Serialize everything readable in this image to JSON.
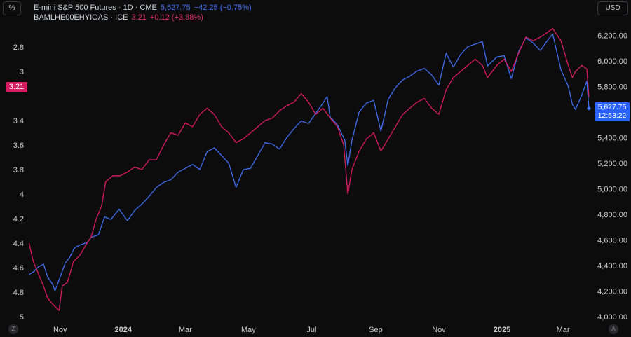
{
  "toolbar": {
    "unit_label": "%",
    "currency_label": "USD",
    "left_corner": "Z",
    "right_corner": "A"
  },
  "legend": {
    "s1": {
      "name": "E-mini S&P 500 Futures · 1D · CME",
      "value": "5,627.75",
      "change": "−42.25 (−0.75%)"
    },
    "s2": {
      "name": "BAMLHE00EHYIOAS · ICE",
      "value": "3.21",
      "change": "+0.12 (+3.88%)"
    }
  },
  "badges": {
    "left_value": "3.21",
    "right_value": "5,627.75",
    "right_countdown": "12:53:22"
  },
  "colors": {
    "sp500": "#3f6ef0",
    "spread": "#d81b60",
    "background": "#0c0c0d",
    "axis_text": "#cfcfcf"
  },
  "chart_data": {
    "type": "line",
    "x_range": [
      "2023-10-01",
      "2025-03-26"
    ],
    "left_axis": {
      "ticks": [
        "2.8",
        "3",
        "3.4",
        "3.6",
        "3.8",
        "4",
        "4.2",
        "4.4",
        "4.6",
        "4.8",
        "5"
      ],
      "range": [
        2.6,
        5.0
      ],
      "inverted": true
    },
    "right_axis": {
      "ticks": [
        "6,200.00",
        "6,000.00",
        "5,800.00",
        "5,400.00",
        "5,200.00",
        "5,000.00",
        "4,800.00",
        "4,600.00",
        "4,400.00",
        "4,200.00",
        "4,000.00"
      ],
      "range": [
        4000,
        6300
      ]
    },
    "x_ticks": [
      {
        "label": "Nov",
        "date": "2023-11-01",
        "bold": false
      },
      {
        "label": "2024",
        "date": "2024-01-01",
        "bold": true
      },
      {
        "label": "Mar",
        "date": "2024-03-01",
        "bold": false
      },
      {
        "label": "May",
        "date": "2024-05-01",
        "bold": false
      },
      {
        "label": "Jul",
        "date": "2024-07-01",
        "bold": false
      },
      {
        "label": "Sep",
        "date": "2024-09-01",
        "bold": false
      },
      {
        "label": "Nov",
        "date": "2024-11-01",
        "bold": false
      },
      {
        "label": "2025",
        "date": "2025-01-01",
        "bold": true
      },
      {
        "label": "Mar",
        "date": "2025-03-01",
        "bold": false
      }
    ],
    "series": [
      {
        "axis": "right",
        "points": [
          [
            "2023-10-02",
            4330
          ],
          [
            "2023-10-06",
            4350
          ],
          [
            "2023-10-11",
            4390
          ],
          [
            "2023-10-16",
            4410
          ],
          [
            "2023-10-20",
            4310
          ],
          [
            "2023-10-25",
            4250
          ],
          [
            "2023-10-27",
            4200
          ],
          [
            "2023-11-01",
            4310
          ],
          [
            "2023-11-06",
            4420
          ],
          [
            "2023-11-10",
            4460
          ],
          [
            "2023-11-15",
            4540
          ],
          [
            "2023-11-20",
            4560
          ],
          [
            "2023-11-27",
            4580
          ],
          [
            "2023-12-01",
            4620
          ],
          [
            "2023-12-08",
            4640
          ],
          [
            "2023-12-14",
            4780
          ],
          [
            "2023-12-20",
            4760
          ],
          [
            "2023-12-28",
            4840
          ],
          [
            "2024-01-05",
            4750
          ],
          [
            "2024-01-12",
            4830
          ],
          [
            "2024-01-19",
            4880
          ],
          [
            "2024-01-26",
            4940
          ],
          [
            "2024-02-02",
            5010
          ],
          [
            "2024-02-09",
            5050
          ],
          [
            "2024-02-16",
            5070
          ],
          [
            "2024-02-23",
            5130
          ],
          [
            "2024-03-01",
            5160
          ],
          [
            "2024-03-08",
            5190
          ],
          [
            "2024-03-15",
            5150
          ],
          [
            "2024-03-22",
            5290
          ],
          [
            "2024-03-29",
            5320
          ],
          [
            "2024-04-05",
            5260
          ],
          [
            "2024-04-12",
            5200
          ],
          [
            "2024-04-19",
            5010
          ],
          [
            "2024-04-26",
            5150
          ],
          [
            "2024-05-03",
            5160
          ],
          [
            "2024-05-10",
            5260
          ],
          [
            "2024-05-17",
            5360
          ],
          [
            "2024-05-24",
            5350
          ],
          [
            "2024-05-31",
            5310
          ],
          [
            "2024-06-07",
            5400
          ],
          [
            "2024-06-14",
            5470
          ],
          [
            "2024-06-21",
            5530
          ],
          [
            "2024-06-28",
            5510
          ],
          [
            "2024-07-05",
            5590
          ],
          [
            "2024-07-12",
            5670
          ],
          [
            "2024-07-16",
            5720
          ],
          [
            "2024-07-19",
            5560
          ],
          [
            "2024-07-26",
            5500
          ],
          [
            "2024-08-02",
            5380
          ],
          [
            "2024-08-05",
            5180
          ],
          [
            "2024-08-09",
            5380
          ],
          [
            "2024-08-16",
            5600
          ],
          [
            "2024-08-23",
            5670
          ],
          [
            "2024-08-30",
            5690
          ],
          [
            "2024-09-06",
            5450
          ],
          [
            "2024-09-13",
            5700
          ],
          [
            "2024-09-20",
            5790
          ],
          [
            "2024-09-27",
            5850
          ],
          [
            "2024-10-04",
            5880
          ],
          [
            "2024-10-11",
            5920
          ],
          [
            "2024-10-18",
            5940
          ],
          [
            "2024-10-25",
            5890
          ],
          [
            "2024-11-01",
            5810
          ],
          [
            "2024-11-08",
            6060
          ],
          [
            "2024-11-15",
            5950
          ],
          [
            "2024-11-22",
            6050
          ],
          [
            "2024-11-29",
            6110
          ],
          [
            "2024-12-06",
            6130
          ],
          [
            "2024-12-13",
            6150
          ],
          [
            "2024-12-18",
            5960
          ],
          [
            "2024-12-27",
            6030
          ],
          [
            "2025-01-03",
            6040
          ],
          [
            "2025-01-10",
            5860
          ],
          [
            "2025-01-17",
            6070
          ],
          [
            "2025-01-24",
            6180
          ],
          [
            "2025-01-31",
            6140
          ],
          [
            "2025-02-07",
            6080
          ],
          [
            "2025-02-14",
            6160
          ],
          [
            "2025-02-19",
            6210
          ],
          [
            "2025-02-27",
            5930
          ],
          [
            "2025-03-06",
            5800
          ],
          [
            "2025-03-10",
            5660
          ],
          [
            "2025-03-13",
            5620
          ],
          [
            "2025-03-19",
            5730
          ],
          [
            "2025-03-24",
            5840
          ],
          [
            "2025-03-26",
            5628
          ]
        ]
      },
      {
        "axis": "left",
        "points": [
          [
            "2023-10-02",
            4.4
          ],
          [
            "2023-10-06",
            4.55
          ],
          [
            "2023-10-11",
            4.65
          ],
          [
            "2023-10-16",
            4.75
          ],
          [
            "2023-10-20",
            4.85
          ],
          [
            "2023-10-25",
            4.9
          ],
          [
            "2023-10-31",
            4.95
          ],
          [
            "2023-11-03",
            4.75
          ],
          [
            "2023-11-08",
            4.72
          ],
          [
            "2023-11-14",
            4.55
          ],
          [
            "2023-11-20",
            4.5
          ],
          [
            "2023-11-27",
            4.4
          ],
          [
            "2023-12-01",
            4.35
          ],
          [
            "2023-12-06",
            4.2
          ],
          [
            "2023-12-11",
            4.1
          ],
          [
            "2023-12-15",
            3.9
          ],
          [
            "2023-12-22",
            3.85
          ],
          [
            "2023-12-29",
            3.85
          ],
          [
            "2024-01-05",
            3.82
          ],
          [
            "2024-01-12",
            3.78
          ],
          [
            "2024-01-19",
            3.8
          ],
          [
            "2024-01-26",
            3.72
          ],
          [
            "2024-02-02",
            3.72
          ],
          [
            "2024-02-09",
            3.6
          ],
          [
            "2024-02-16",
            3.5
          ],
          [
            "2024-02-23",
            3.52
          ],
          [
            "2024-03-01",
            3.42
          ],
          [
            "2024-03-08",
            3.45
          ],
          [
            "2024-03-15",
            3.35
          ],
          [
            "2024-03-22",
            3.3
          ],
          [
            "2024-03-29",
            3.35
          ],
          [
            "2024-04-05",
            3.45
          ],
          [
            "2024-04-12",
            3.5
          ],
          [
            "2024-04-19",
            3.58
          ],
          [
            "2024-04-26",
            3.55
          ],
          [
            "2024-05-03",
            3.5
          ],
          [
            "2024-05-10",
            3.45
          ],
          [
            "2024-05-17",
            3.4
          ],
          [
            "2024-05-24",
            3.38
          ],
          [
            "2024-05-31",
            3.32
          ],
          [
            "2024-06-07",
            3.28
          ],
          [
            "2024-06-14",
            3.25
          ],
          [
            "2024-06-21",
            3.18
          ],
          [
            "2024-06-28",
            3.25
          ],
          [
            "2024-07-05",
            3.35
          ],
          [
            "2024-07-12",
            3.3
          ],
          [
            "2024-07-19",
            3.38
          ],
          [
            "2024-07-26",
            3.45
          ],
          [
            "2024-08-01",
            3.6
          ],
          [
            "2024-08-05",
            4.0
          ],
          [
            "2024-08-09",
            3.8
          ],
          [
            "2024-08-16",
            3.65
          ],
          [
            "2024-08-23",
            3.55
          ],
          [
            "2024-08-30",
            3.5
          ],
          [
            "2024-09-06",
            3.65
          ],
          [
            "2024-09-13",
            3.55
          ],
          [
            "2024-09-20",
            3.45
          ],
          [
            "2024-09-27",
            3.35
          ],
          [
            "2024-10-04",
            3.3
          ],
          [
            "2024-10-11",
            3.25
          ],
          [
            "2024-10-18",
            3.22
          ],
          [
            "2024-10-25",
            3.3
          ],
          [
            "2024-11-01",
            3.35
          ],
          [
            "2024-11-08",
            3.15
          ],
          [
            "2024-11-15",
            3.05
          ],
          [
            "2024-11-22",
            3.0
          ],
          [
            "2024-11-29",
            2.95
          ],
          [
            "2024-12-06",
            2.9
          ],
          [
            "2024-12-13",
            2.95
          ],
          [
            "2024-12-18",
            3.05
          ],
          [
            "2024-12-27",
            2.95
          ],
          [
            "2025-01-03",
            2.9
          ],
          [
            "2025-01-10",
            3.0
          ],
          [
            "2025-01-17",
            2.85
          ],
          [
            "2025-01-24",
            2.72
          ],
          [
            "2025-01-31",
            2.75
          ],
          [
            "2025-02-07",
            2.72
          ],
          [
            "2025-02-14",
            2.68
          ],
          [
            "2025-02-19",
            2.65
          ],
          [
            "2025-02-27",
            2.75
          ],
          [
            "2025-03-06",
            2.95
          ],
          [
            "2025-03-10",
            3.05
          ],
          [
            "2025-03-13",
            3.0
          ],
          [
            "2025-03-19",
            2.95
          ],
          [
            "2025-03-24",
            2.98
          ],
          [
            "2025-03-26",
            3.21
          ]
        ]
      }
    ]
  }
}
